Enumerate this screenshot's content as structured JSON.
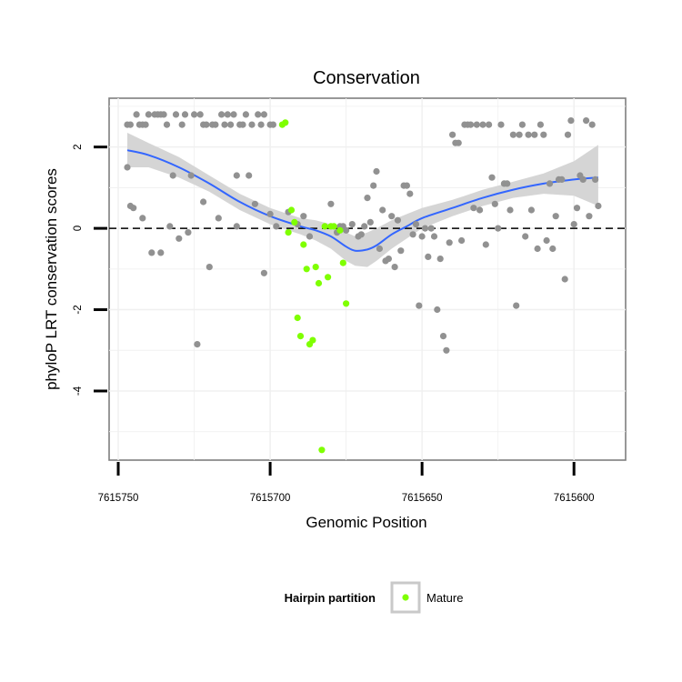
{
  "chart_data": {
    "type": "scatter",
    "title": "Conservation",
    "xlabel": "Genomic Position",
    "ylabel": "phyloP LRT conservation scores",
    "x_reversed": true,
    "xlim": [
      7615753,
      7615583
    ],
    "ylim": [
      -5.7,
      3.2
    ],
    "x_ticks": [
      7615750,
      7615700,
      7615650,
      7615600
    ],
    "x_tick_labels": [
      "7615750",
      "7615700",
      "7615650",
      "7615600"
    ],
    "y_ticks": [
      2,
      0,
      -2,
      -4
    ],
    "y_tick_labels": [
      "2",
      "0",
      "-2",
      "-4"
    ],
    "reference_line": 0,
    "grid": true,
    "legend": {
      "title": "Hairpin partition",
      "placement": "bottom",
      "entries": [
        {
          "label": "Mature",
          "color": "#7fff00"
        }
      ]
    },
    "colors": {
      "other": "#919191",
      "mature": "#7fff00",
      "smooth": "#3366ff",
      "band": "#d3d3d3"
    },
    "series": [
      {
        "name": "Other",
        "color": "#919191",
        "points": [
          [
            7615747,
            1.5
          ],
          [
            7615747,
            2.55
          ],
          [
            7615746,
            2.55
          ],
          [
            7615746,
            0.55
          ],
          [
            7615745,
            0.5
          ],
          [
            7615744,
            2.8
          ],
          [
            7615743,
            2.55
          ],
          [
            7615742,
            2.55
          ],
          [
            7615742,
            0.25
          ],
          [
            7615741,
            2.55
          ],
          [
            7615740,
            2.8
          ],
          [
            7615739,
            -0.6
          ],
          [
            7615738,
            2.8
          ],
          [
            7615737,
            2.8
          ],
          [
            7615736,
            -0.6
          ],
          [
            7615736,
            2.8
          ],
          [
            7615735,
            2.8
          ],
          [
            7615734,
            2.55
          ],
          [
            7615733,
            0.05
          ],
          [
            7615732,
            1.3
          ],
          [
            7615731,
            2.8
          ],
          [
            7615730,
            -0.25
          ],
          [
            7615729,
            2.55
          ],
          [
            7615728,
            2.8
          ],
          [
            7615727,
            -0.1
          ],
          [
            7615726,
            1.3
          ],
          [
            7615725,
            2.8
          ],
          [
            7615724,
            -2.85
          ],
          [
            7615723,
            2.8
          ],
          [
            7615722,
            0.65
          ],
          [
            7615722,
            2.55
          ],
          [
            7615721,
            2.55
          ],
          [
            7615720,
            -0.95
          ],
          [
            7615719,
            2.55
          ],
          [
            7615718,
            2.55
          ],
          [
            7615717,
            0.25
          ],
          [
            7615716,
            2.8
          ],
          [
            7615715,
            2.55
          ],
          [
            7615714,
            2.8
          ],
          [
            7615713,
            2.55
          ],
          [
            7615712,
            2.8
          ],
          [
            7615711,
            0.05
          ],
          [
            7615711,
            1.3
          ],
          [
            7615710,
            2.55
          ],
          [
            7615709,
            2.55
          ],
          [
            7615708,
            2.8
          ],
          [
            7615707,
            1.3
          ],
          [
            7615706,
            2.55
          ],
          [
            7615705,
            0.6
          ],
          [
            7615704,
            2.8
          ],
          [
            7615703,
            2.55
          ],
          [
            7615702,
            -1.1
          ],
          [
            7615702,
            2.8
          ],
          [
            7615700,
            2.55
          ],
          [
            7615700,
            0.35
          ],
          [
            7615699,
            2.55
          ],
          [
            7615698,
            0.05
          ],
          [
            7615694,
            0.4
          ],
          [
            7615691,
            0.1
          ],
          [
            7615689,
            0.3
          ],
          [
            7615687,
            -0.2
          ],
          [
            7615680,
            0.6
          ],
          [
            7615678,
            -0.1
          ],
          [
            7615677,
            0.05
          ],
          [
            7615676,
            0.05
          ],
          [
            7615675,
            -0.05
          ],
          [
            7615673,
            0.1
          ],
          [
            7615671,
            -0.2
          ],
          [
            7615670,
            -0.15
          ],
          [
            7615669,
            0.05
          ],
          [
            7615668,
            0.75
          ],
          [
            7615667,
            0.15
          ],
          [
            7615666,
            1.05
          ],
          [
            7615665,
            1.4
          ],
          [
            7615664,
            -0.5
          ],
          [
            7615663,
            0.45
          ],
          [
            7615662,
            -0.8
          ],
          [
            7615661,
            -0.75
          ],
          [
            7615660,
            0.3
          ],
          [
            7615659,
            -0.95
          ],
          [
            7615658,
            0.2
          ],
          [
            7615657,
            -0.55
          ],
          [
            7615656,
            1.05
          ],
          [
            7615655,
            1.05
          ],
          [
            7615654,
            0.85
          ],
          [
            7615653,
            -0.15
          ],
          [
            7615652,
            0.1
          ],
          [
            7615651,
            -1.9
          ],
          [
            7615650,
            -0.2
          ],
          [
            7615649,
            0.0
          ],
          [
            7615648,
            -0.7
          ],
          [
            7615647,
            0.0
          ],
          [
            7615646,
            -0.2
          ],
          [
            7615645,
            -2.0
          ],
          [
            7615644,
            -0.75
          ],
          [
            7615643,
            -2.65
          ],
          [
            7615642,
            -3.0
          ],
          [
            7615641,
            -0.35
          ],
          [
            7615640,
            2.3
          ],
          [
            7615639,
            2.1
          ],
          [
            7615638,
            2.1
          ],
          [
            7615637,
            -0.3
          ],
          [
            7615636,
            2.55
          ],
          [
            7615635,
            2.55
          ],
          [
            7615634,
            2.55
          ],
          [
            7615633,
            0.5
          ],
          [
            7615632,
            2.55
          ],
          [
            7615631,
            0.45
          ],
          [
            7615630,
            2.55
          ],
          [
            7615629,
            -0.4
          ],
          [
            7615628,
            2.55
          ],
          [
            7615627,
            1.25
          ],
          [
            7615626,
            0.6
          ],
          [
            7615625,
            0.0
          ],
          [
            7615624,
            2.55
          ],
          [
            7615623,
            1.1
          ],
          [
            7615622,
            1.1
          ],
          [
            7615621,
            0.45
          ],
          [
            7615620,
            2.3
          ],
          [
            7615619,
            -1.9
          ],
          [
            7615618,
            2.3
          ],
          [
            7615617,
            2.55
          ],
          [
            7615616,
            -0.2
          ],
          [
            7615615,
            2.3
          ],
          [
            7615614,
            0.45
          ],
          [
            7615613,
            2.3
          ],
          [
            7615612,
            -0.5
          ],
          [
            7615611,
            2.55
          ],
          [
            7615610,
            2.3
          ],
          [
            7615609,
            -0.3
          ],
          [
            7615608,
            1.1
          ],
          [
            7615607,
            -0.5
          ],
          [
            7615606,
            0.3
          ],
          [
            7615605,
            1.2
          ],
          [
            7615604,
            1.2
          ],
          [
            7615603,
            -1.25
          ],
          [
            7615602,
            2.3
          ],
          [
            7615601,
            2.65
          ],
          [
            7615600,
            0.1
          ],
          [
            7615599,
            0.5
          ],
          [
            7615598,
            1.3
          ],
          [
            7615597,
            1.2
          ],
          [
            7615596,
            2.65
          ],
          [
            7615595,
            0.3
          ],
          [
            7615594,
            2.55
          ],
          [
            7615593,
            1.2
          ],
          [
            7615592,
            0.55
          ]
        ]
      },
      {
        "name": "Mature",
        "color": "#7fff00",
        "points": [
          [
            7615696,
            2.55
          ],
          [
            7615695,
            2.6
          ],
          [
            7615694,
            -0.1
          ],
          [
            7615693,
            0.45
          ],
          [
            7615692,
            0.15
          ],
          [
            7615691,
            -2.2
          ],
          [
            7615690,
            -2.65
          ],
          [
            7615689,
            -0.4
          ],
          [
            7615688,
            -1.0
          ],
          [
            7615687,
            -2.85
          ],
          [
            7615686,
            -2.75
          ],
          [
            7615685,
            -0.95
          ],
          [
            7615684,
            -1.35
          ],
          [
            7615683,
            -5.45
          ],
          [
            7615682,
            0.05
          ],
          [
            7615681,
            -1.2
          ],
          [
            7615680,
            0.05
          ],
          [
            7615679,
            0.05
          ],
          [
            7615677,
            -0.05
          ],
          [
            7615676,
            -0.85
          ],
          [
            7615675,
            -1.85
          ]
        ]
      }
    ],
    "smooth": {
      "x": [
        7615747,
        7615740,
        7615730,
        7615720,
        7615710,
        7615700,
        7615690,
        7615685,
        7615680,
        7615675,
        7615672,
        7615668,
        7615665,
        7615660,
        7615655,
        7615650,
        7615640,
        7615630,
        7615620,
        7615610,
        7615600,
        7615592
      ],
      "y": [
        1.92,
        1.8,
        1.5,
        1.1,
        0.65,
        0.3,
        0.05,
        -0.05,
        -0.2,
        -0.45,
        -0.55,
        -0.52,
        -0.42,
        -0.15,
        0.05,
        0.25,
        0.5,
        0.75,
        0.95,
        1.1,
        1.2,
        1.25
      ],
      "lower": [
        1.5,
        1.5,
        1.25,
        0.9,
        0.45,
        0.1,
        -0.15,
        -0.3,
        -0.5,
        -0.8,
        -0.92,
        -0.95,
        -0.8,
        -0.5,
        -0.25,
        0.0,
        0.3,
        0.55,
        0.75,
        0.85,
        0.8,
        0.55
      ],
      "upper": [
        2.35,
        2.1,
        1.75,
        1.3,
        0.85,
        0.5,
        0.25,
        0.2,
        0.1,
        -0.1,
        -0.2,
        -0.1,
        0.0,
        0.2,
        0.35,
        0.5,
        0.7,
        0.95,
        1.15,
        1.35,
        1.65,
        2.05
      ]
    }
  }
}
